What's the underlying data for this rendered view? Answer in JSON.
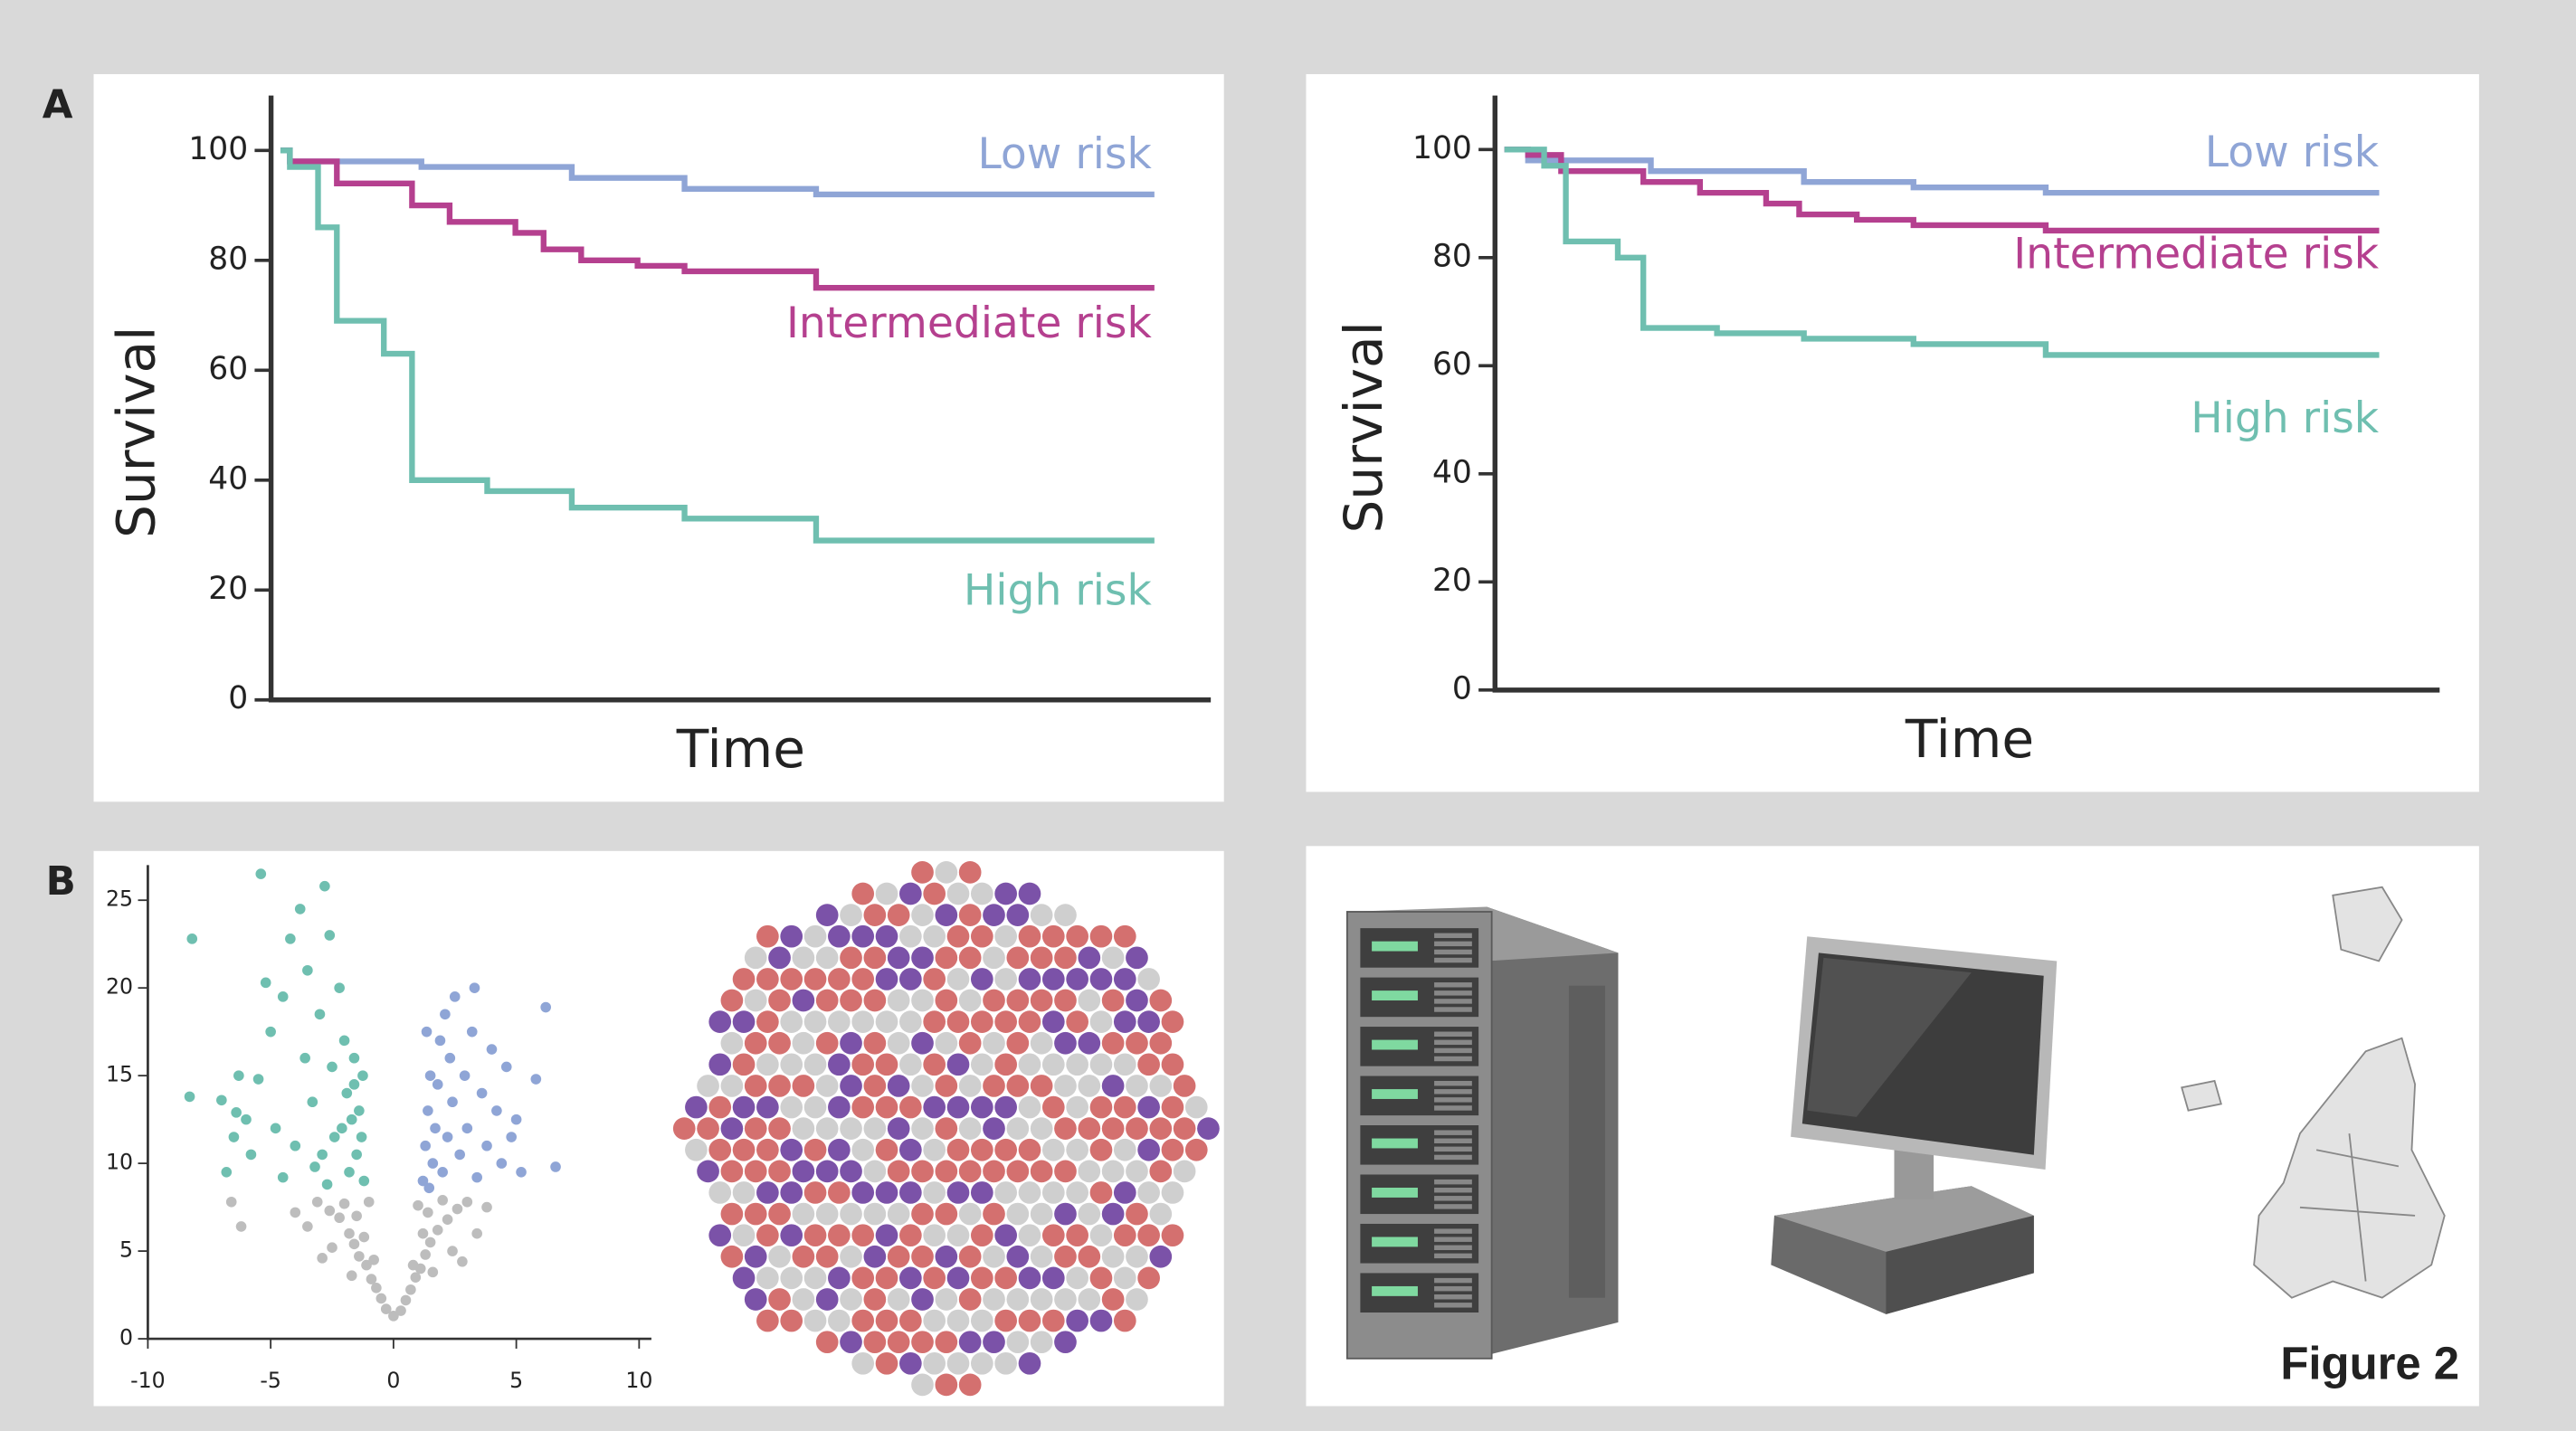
{
  "panel_labels": [
    "A",
    "B"
  ],
  "figure_label": "Figure 2",
  "chart_data": [
    {
      "type": "line",
      "drawstyle": "steps-post",
      "xlabel": "Time",
      "ylabel": "Survival",
      "xlim": [
        0,
        100
      ],
      "ylim": [
        0,
        110
      ],
      "yticks": [
        0,
        20,
        40,
        60,
        80,
        100
      ],
      "series": [
        {
          "name": "Low risk",
          "color": "#8fa5d6",
          "x": [
            1,
            2,
            16,
            32,
            44,
            58,
            94
          ],
          "values": [
            100,
            98,
            97,
            95,
            93,
            92,
            92
          ]
        },
        {
          "name": "Intermediate risk",
          "color": "#b5408f",
          "x": [
            1,
            2,
            7,
            15,
            19,
            26,
            29,
            33,
            39,
            44,
            58,
            94
          ],
          "values": [
            100,
            98,
            94,
            90,
            87,
            85,
            82,
            80,
            79,
            78,
            75,
            75
          ]
        },
        {
          "name": "High risk",
          "color": "#6fbfb0",
          "x": [
            1,
            2,
            5,
            7,
            12,
            15,
            23,
            32,
            44,
            58,
            94
          ],
          "values": [
            100,
            97,
            86,
            69,
            63,
            40,
            38,
            35,
            33,
            29,
            29
          ]
        }
      ]
    },
    {
      "type": "line",
      "drawstyle": "steps-post",
      "xlabel": "Time",
      "ylabel": "Survival",
      "xlim": [
        0,
        100
      ],
      "ylim": [
        0,
        110
      ],
      "yticks": [
        0,
        20,
        40,
        60,
        80,
        100
      ],
      "series": [
        {
          "name": "Low risk",
          "color": "#8fa5d6",
          "x": [
            1,
            3.5,
            16.5,
            32.7,
            44.3,
            58.3,
            93.6
          ],
          "values": [
            100,
            98,
            96,
            94,
            93,
            92,
            92
          ]
        },
        {
          "name": "Intermediate risk",
          "color": "#b5408f",
          "x": [
            1,
            3.5,
            7,
            15.7,
            21.7,
            28.7,
            32.2,
            38.3,
            44.3,
            58.3,
            93.6
          ],
          "values": [
            100,
            99,
            96,
            94,
            92,
            90,
            88,
            87,
            86,
            85,
            85
          ]
        },
        {
          "name": "High risk",
          "color": "#6fbfb0",
          "x": [
            1,
            5.2,
            7.5,
            13,
            15.7,
            23.5,
            32.7,
            44.3,
            58.3,
            93.6
          ],
          "values": [
            100,
            97,
            83,
            80,
            67,
            66,
            65,
            64,
            62,
            62
          ]
        }
      ]
    },
    {
      "type": "scatter",
      "xlim": [
        -10,
        10.5
      ],
      "ylim": [
        0,
        27
      ],
      "xticks": [
        -10,
        -5,
        0,
        5,
        10
      ],
      "yticks": [
        0,
        5,
        10,
        15,
        20,
        25
      ],
      "series": [
        {
          "color": "#bdbdbd",
          "x": [
            0,
            0.3,
            -0.3,
            0.5,
            -0.5,
            0.7,
            -0.7,
            0.9,
            -0.9,
            1.1,
            -1.1,
            1.3,
            -1.4,
            1.5,
            -1.6,
            1.8,
            -1.8,
            2.2,
            -2.2,
            2.6,
            -2.6,
            3.0,
            -3.1,
            1.2,
            -1.2,
            1.4,
            -1.5,
            2.0,
            -2.0,
            0.8,
            -0.8,
            1.6,
            -1.7,
            2.4,
            -2.5,
            3.4,
            -3.5,
            -6.2,
            -6.6,
            2.8,
            -2.9,
            1.0,
            -1.0,
            3.8,
            -4.0
          ],
          "values": [
            1.3,
            1.6,
            1.7,
            2.2,
            2.3,
            2.8,
            2.9,
            3.5,
            3.4,
            4.0,
            4.2,
            4.8,
            4.7,
            5.5,
            5.4,
            6.2,
            6.0,
            6.8,
            6.9,
            7.4,
            7.3,
            7.8,
            7.8,
            6.0,
            5.8,
            7.2,
            7.0,
            7.9,
            7.7,
            4.2,
            4.5,
            3.8,
            3.6,
            5.0,
            5.2,
            6.0,
            6.4,
            6.4,
            7.8,
            4.4,
            4.6,
            7.6,
            7.8,
            7.5,
            7.2
          ]
        },
        {
          "color": "#6fbfb0",
          "x": [
            -8.2,
            -8.3,
            -7.0,
            -6.8,
            -6.5,
            -6.3,
            -6.0,
            -5.8,
            -5.5,
            -5.2,
            -5.4,
            -5.0,
            -4.8,
            -4.5,
            -4.2,
            -4.0,
            -3.8,
            -3.6,
            -3.5,
            -3.3,
            -3.0,
            -2.8,
            -2.6,
            -2.5,
            -2.4,
            -2.2,
            -2.0,
            -1.9,
            -1.8,
            -1.7,
            -1.6,
            -1.5,
            -1.4,
            -1.3,
            -1.2,
            -3.2,
            -2.7,
            -4.5,
            -2.1,
            -1.6,
            -2.9,
            -6.4,
            -1.25
          ],
          "values": [
            22.8,
            13.8,
            13.6,
            9.5,
            11.5,
            15.0,
            12.5,
            10.5,
            14.8,
            20.3,
            26.5,
            17.5,
            12.0,
            19.5,
            22.8,
            11.0,
            24.5,
            16.0,
            21.0,
            13.5,
            18.5,
            25.8,
            23.0,
            15.5,
            11.5,
            20.0,
            17.0,
            14.0,
            9.5,
            12.5,
            16.0,
            10.5,
            13.0,
            11.5,
            9.0,
            9.8,
            8.8,
            9.2,
            12.0,
            14.5,
            10.5,
            12.9,
            15.0
          ]
        },
        {
          "color": "#8fa5d6",
          "x": [
            1.2,
            1.3,
            1.4,
            1.5,
            1.6,
            1.7,
            1.8,
            1.9,
            2.0,
            2.2,
            2.3,
            2.4,
            2.5,
            2.7,
            2.9,
            3.0,
            3.2,
            3.4,
            3.6,
            3.8,
            4.0,
            4.2,
            4.4,
            4.6,
            5.0,
            5.2,
            5.8,
            6.2,
            6.6,
            1.35,
            2.1,
            3.3,
            4.8,
            1.45
          ],
          "values": [
            9.0,
            11.0,
            13.0,
            15.0,
            10.0,
            12.0,
            14.5,
            17.0,
            9.5,
            11.5,
            16.0,
            13.5,
            19.5,
            10.5,
            15.0,
            12.0,
            17.5,
            9.2,
            14.0,
            11.0,
            16.5,
            13.0,
            10.0,
            15.5,
            12.5,
            9.5,
            14.8,
            18.9,
            9.8,
            17.5,
            18.5,
            20.0,
            11.5,
            8.6
          ]
        }
      ]
    }
  ]
}
